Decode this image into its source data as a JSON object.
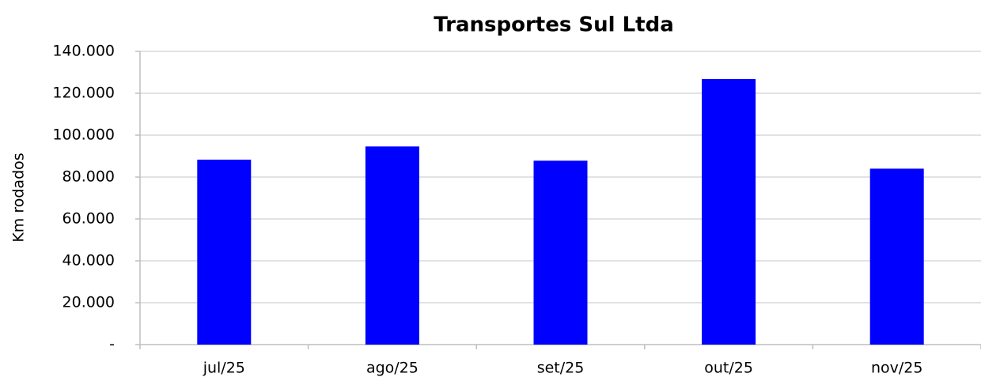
{
  "chart_data": {
    "type": "bar",
    "title": "Transportes Sul Ltda",
    "y_label": "Km rodados",
    "categories": [
      "jul/25",
      "ago/25",
      "set/25",
      "out/25",
      "nov/25"
    ],
    "values": [
      88300,
      94600,
      87800,
      126800,
      84000
    ],
    "color": "#0000ff",
    "ylim": [
      0,
      140000
    ],
    "yticks": [
      {
        "value": 0,
        "label": "-"
      },
      {
        "value": 20000,
        "label": "20.000"
      },
      {
        "value": 40000,
        "label": "40.000"
      },
      {
        "value": 60000,
        "label": "60.000"
      },
      {
        "value": 80000,
        "label": "80.000"
      },
      {
        "value": 100000,
        "label": "100.000"
      },
      {
        "value": 120000,
        "label": "120.000"
      },
      {
        "value": 140000,
        "label": "140.000"
      }
    ],
    "grid": true
  }
}
